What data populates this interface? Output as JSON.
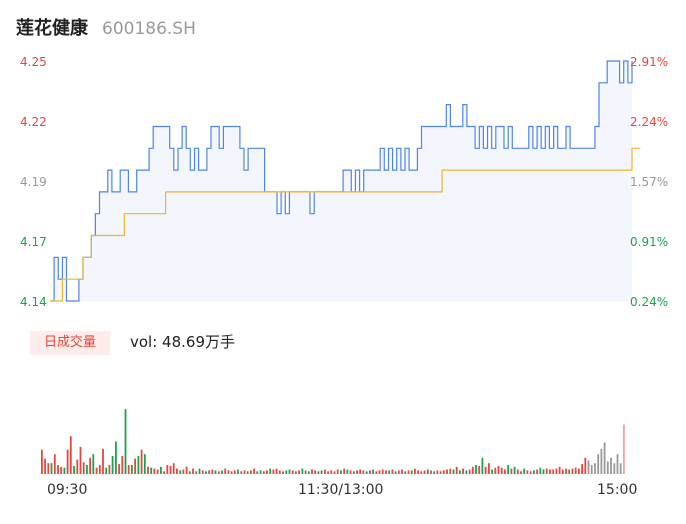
{
  "header": {
    "name": "莲花健康",
    "code": "600186.SH"
  },
  "volume": {
    "label": "日成交量",
    "text": "vol: 48.69万手"
  },
  "colors": {
    "price_line": "#4f86e4",
    "avg_line": "#f2b32a",
    "up": "#e8453c",
    "down": "#1aa34a",
    "flat": "#999999",
    "area": "#f3f6fd"
  },
  "chart_data": [
    {
      "type": "line",
      "title": "",
      "x_ticks": [
        "09:30",
        "11:30/13:00",
        "15:00"
      ],
      "ylim": [
        4.14,
        4.25
      ],
      "y_ticks_left": [
        "4.25",
        "4.22",
        "4.19",
        "4.17",
        "4.14"
      ],
      "y_ticks_right": [
        "2.91%",
        "2.24%",
        "1.57%",
        "0.91%",
        "0.24%"
      ],
      "series": [
        {
          "values": [
            4.14,
            4.16,
            4.15,
            4.16,
            4.14,
            4.14,
            4.14,
            4.15,
            4.16,
            4.16,
            4.17,
            4.18,
            4.19,
            4.19,
            4.2,
            4.19,
            4.19,
            4.2,
            4.2,
            4.19,
            4.19,
            4.2,
            4.2,
            4.2,
            4.21,
            4.22,
            4.22,
            4.22,
            4.22,
            4.21,
            4.2,
            4.21,
            4.22,
            4.21,
            4.2,
            4.21,
            4.2,
            4.2,
            4.21,
            4.22,
            4.22,
            4.21,
            4.22,
            4.22,
            4.22,
            4.22,
            4.21,
            4.2,
            4.21,
            4.21,
            4.21,
            4.21,
            4.19,
            4.19,
            4.19,
            4.18,
            4.19,
            4.18,
            4.19,
            4.19,
            4.19,
            4.19,
            4.19,
            4.18,
            4.19,
            4.19,
            4.19,
            4.19,
            4.19,
            4.19,
            4.19,
            4.2,
            4.2,
            4.19,
            4.2,
            4.19,
            4.2,
            4.2,
            4.2,
            4.2,
            4.21,
            4.2,
            4.21,
            4.2,
            4.21,
            4.2,
            4.21,
            4.2,
            4.2,
            4.21,
            4.22,
            4.22,
            4.22,
            4.22,
            4.22,
            4.22,
            4.23,
            4.22,
            4.22,
            4.22,
            4.23,
            4.22,
            4.22,
            4.21,
            4.22,
            4.21,
            4.22,
            4.21,
            4.22,
            4.22,
            4.21,
            4.22,
            4.21,
            4.21,
            4.21,
            4.21,
            4.22,
            4.21,
            4.22,
            4.21,
            4.22,
            4.21,
            4.22,
            4.21,
            4.21,
            4.22,
            4.21,
            4.21,
            4.21,
            4.21,
            4.21,
            4.21,
            4.22,
            4.24,
            4.24,
            4.25,
            4.25,
            4.25,
            4.24,
            4.25,
            4.24,
            4.25
          ]
        },
        {
          "values": [
            4.14,
            4.14,
            4.14,
            4.15,
            4.15,
            4.15,
            4.15,
            4.15,
            4.16,
            4.16,
            4.17,
            4.17,
            4.17,
            4.17,
            4.17,
            4.17,
            4.17,
            4.17,
            4.18,
            4.18,
            4.18,
            4.18,
            4.18,
            4.18,
            4.18,
            4.18,
            4.18,
            4.18,
            4.19,
            4.19,
            4.19,
            4.19,
            4.19,
            4.19,
            4.19,
            4.19,
            4.19,
            4.19,
            4.19,
            4.19,
            4.19,
            4.19,
            4.19,
            4.19,
            4.19,
            4.19,
            4.19,
            4.19,
            4.19,
            4.19,
            4.19,
            4.19,
            4.19,
            4.19,
            4.19,
            4.19,
            4.19,
            4.19,
            4.19,
            4.19,
            4.19,
            4.19,
            4.19,
            4.19,
            4.19,
            4.19,
            4.19,
            4.19,
            4.19,
            4.19,
            4.19,
            4.19,
            4.19,
            4.19,
            4.19,
            4.19,
            4.19,
            4.19,
            4.19,
            4.19,
            4.19,
            4.19,
            4.19,
            4.19,
            4.19,
            4.19,
            4.19,
            4.19,
            4.19,
            4.19,
            4.19,
            4.19,
            4.19,
            4.19,
            4.19,
            4.2,
            4.2,
            4.2,
            4.2,
            4.2,
            4.2,
            4.2,
            4.2,
            4.2,
            4.2,
            4.2,
            4.2,
            4.2,
            4.2,
            4.2,
            4.2,
            4.2,
            4.2,
            4.2,
            4.2,
            4.2,
            4.2,
            4.2,
            4.2,
            4.2,
            4.2,
            4.2,
            4.2,
            4.2,
            4.2,
            4.2,
            4.2,
            4.2,
            4.2,
            4.2,
            4.2,
            4.2,
            4.2,
            4.2,
            4.2,
            4.2,
            4.2,
            4.2,
            4.2,
            4.2,
            4.2,
            4.21,
            4.21,
            4.21
          ]
        }
      ]
    },
    {
      "type": "bar",
      "title": "",
      "directions": [
        "u",
        "u",
        "u",
        "d",
        "u",
        "u",
        "u",
        "d",
        "u",
        "u",
        "d",
        "u",
        "u",
        "u",
        "d",
        "u",
        "d",
        "u",
        "u",
        "u",
        "d",
        "u",
        "d",
        "d",
        "u",
        "u",
        "d",
        "u",
        "d",
        "u",
        "d",
        "u",
        "d",
        "u",
        "d",
        "u",
        "u",
        "d",
        "u",
        "u",
        "u",
        "u",
        "u",
        "d",
        "u",
        "u",
        "d",
        "u",
        "u",
        "d",
        "u",
        "d",
        "u",
        "u",
        "d",
        "u",
        "d",
        "u",
        "u",
        "u",
        "u",
        "d",
        "u",
        "u",
        "d",
        "u",
        "u",
        "d",
        "d",
        "u",
        "u",
        "d",
        "u",
        "u",
        "u",
        "u",
        "d",
        "d",
        "u",
        "u",
        "u",
        "d",
        "u",
        "d",
        "u",
        "u",
        "d",
        "d",
        "u",
        "u",
        "u",
        "u",
        "u",
        "d",
        "u",
        "d",
        "u",
        "d",
        "u",
        "u",
        "u",
        "d",
        "u",
        "d",
        "u",
        "u",
        "u",
        "u",
        "d",
        "u",
        "d",
        "u",
        "u",
        "d",
        "u",
        "d",
        "u",
        "u",
        "u",
        "u",
        "d",
        "u",
        "d",
        "u",
        "u",
        "u",
        "u",
        "u",
        "d",
        "u",
        "d",
        "u",
        "d",
        "u",
        "u",
        "d",
        "u",
        "d",
        "u",
        "u",
        "d",
        "u",
        "u",
        "u",
        "u",
        "d",
        "u",
        "d",
        "u",
        "u",
        "d",
        "u",
        "u",
        "d",
        "u",
        "d",
        "d",
        "u",
        "u",
        "u",
        "u",
        "u",
        "u",
        "u",
        "d",
        "u",
        "u",
        "u",
        "u",
        "u",
        "f"
      ],
      "values": [
        0.27,
        0.17,
        0.12,
        0.12,
        0.22,
        0.1,
        0.08,
        0.07,
        0.27,
        0.42,
        0.09,
        0.16,
        0.3,
        0.13,
        0.1,
        0.18,
        0.22,
        0.07,
        0.1,
        0.28,
        0.07,
        0.1,
        0.2,
        0.36,
        0.11,
        0.2,
        0.72,
        0.1,
        0.1,
        0.17,
        0.2,
        0.27,
        0.22,
        0.08,
        0.07,
        0.06,
        0.05,
        0.08,
        0.03,
        0.1,
        0.09,
        0.12,
        0.06,
        0.04,
        0.05,
        0.08,
        0.03,
        0.06,
        0.03,
        0.06,
        0.04,
        0.03,
        0.04,
        0.05,
        0.04,
        0.03,
        0.04,
        0.06,
        0.04,
        0.03,
        0.04,
        0.05,
        0.03,
        0.04,
        0.03,
        0.04,
        0.06,
        0.03,
        0.04,
        0.03,
        0.04,
        0.06,
        0.05,
        0.06,
        0.04,
        0.03,
        0.04,
        0.05,
        0.04,
        0.03,
        0.04,
        0.06,
        0.04,
        0.03,
        0.05,
        0.04,
        0.03,
        0.04,
        0.05,
        0.03,
        0.04,
        0.03,
        0.05,
        0.04,
        0.06,
        0.05,
        0.04,
        0.03,
        0.04,
        0.05,
        0.04,
        0.03,
        0.04,
        0.05,
        0.03,
        0.04,
        0.05,
        0.04,
        0.04,
        0.05,
        0.03,
        0.04,
        0.05,
        0.03,
        0.04,
        0.04,
        0.06,
        0.04,
        0.03,
        0.04,
        0.05,
        0.04,
        0.03,
        0.04,
        0.03,
        0.04,
        0.05,
        0.06,
        0.05,
        0.08,
        0.04,
        0.06,
        0.04,
        0.05,
        0.08,
        0.1,
        0.09,
        0.18,
        0.08,
        0.12,
        0.05,
        0.07,
        0.09,
        0.07,
        0.05,
        0.1,
        0.06,
        0.08,
        0.05,
        0.03,
        0.06,
        0.04,
        0.03,
        0.04,
        0.05,
        0.07,
        0.05,
        0.06,
        0.05,
        0.05,
        0.06,
        0.08,
        0.05,
        0.06,
        0.05,
        0.06,
        0.07,
        0.06,
        0.11,
        0.18,
        0.15,
        0.1,
        0.12,
        0.22,
        0.28,
        0.35,
        0.14,
        0.18,
        0.12,
        0.22,
        0.12,
        0.55
      ]
    }
  ]
}
